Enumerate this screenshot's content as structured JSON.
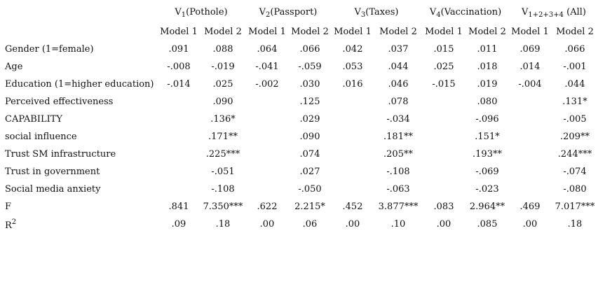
{
  "groups": [
    {
      "prefix": "V",
      "sub": "1",
      "suffix": "(Pothole)"
    },
    {
      "prefix": "V",
      "sub": "2",
      "suffix": "(Passport)"
    },
    {
      "prefix": "V",
      "sub": "3",
      "suffix": "(Taxes)"
    },
    {
      "prefix": "V",
      "sub": "4",
      "suffix": "(Vaccination)"
    },
    {
      "prefix": "V",
      "sub": "1+2+3+4",
      "suffix": " (All)"
    }
  ],
  "model_labels": [
    "Model 1",
    "Model 2",
    "Model 1",
    "Model 2",
    "Model 1",
    "Model 2",
    "Model 1",
    "Model 2",
    "Model 1",
    "Model 2"
  ],
  "rows": [
    {
      "label": "Gender (1=female)",
      "cells": [
        ".091",
        ".088",
        ".064",
        ".066",
        ".042",
        ".037",
        ".015",
        ".011",
        ".069",
        ".066"
      ]
    },
    {
      "label": "Age",
      "cells": [
        "-.008",
        "-.019",
        "-.041",
        "-.059",
        ".053",
        ".044",
        ".025",
        ".018",
        ".014",
        "-.001"
      ]
    },
    {
      "label": "Education (1=higher education)",
      "cells": [
        "-.014",
        ".025",
        "-.002",
        ".030",
        ".016",
        ".046",
        "-.015",
        ".019",
        "-.004",
        ".044"
      ]
    },
    {
      "label": "Perceived effectiveness",
      "cells": [
        "",
        ".090",
        "",
        ".125",
        "",
        ".078",
        "",
        ".080",
        "",
        ".131*"
      ]
    },
    {
      "label": "CAPABILITY",
      "cells": [
        "",
        ".136*",
        "",
        ".029",
        "",
        "-.034",
        "",
        "-.096",
        "",
        "-.005"
      ]
    },
    {
      "label": "social influence",
      "cells": [
        "",
        ".171**",
        "",
        ".090",
        "",
        ".181**",
        "",
        ".151*",
        "",
        ".209**"
      ]
    },
    {
      "label": "Trust SM infrastructure",
      "cells": [
        "",
        ".225***",
        "",
        ".074",
        "",
        ".205**",
        "",
        ".193**",
        "",
        ".244***"
      ]
    },
    {
      "label": "Trust in government",
      "cells": [
        "",
        "-.051",
        "",
        ".027",
        "",
        "-.108",
        "",
        "-.069",
        "",
        "-.074"
      ]
    },
    {
      "label": "Social media anxiety",
      "cells": [
        "",
        "-.108",
        "",
        "-.050",
        "",
        "-.063",
        "",
        "-.023",
        "",
        "-.080"
      ]
    },
    {
      "label": "F",
      "cells": [
        ".841",
        "7.350***",
        ".622",
        "2.215*",
        ".452",
        "3.877***",
        ".083",
        "2.964**",
        ".469",
        "7.017***"
      ]
    },
    {
      "label": "R",
      "label_sup": "2",
      "cells": [
        ".09",
        ".18",
        ".00",
        ".06",
        ".00",
        ".10",
        ".00",
        ".085",
        ".00",
        ".18"
      ]
    }
  ]
}
